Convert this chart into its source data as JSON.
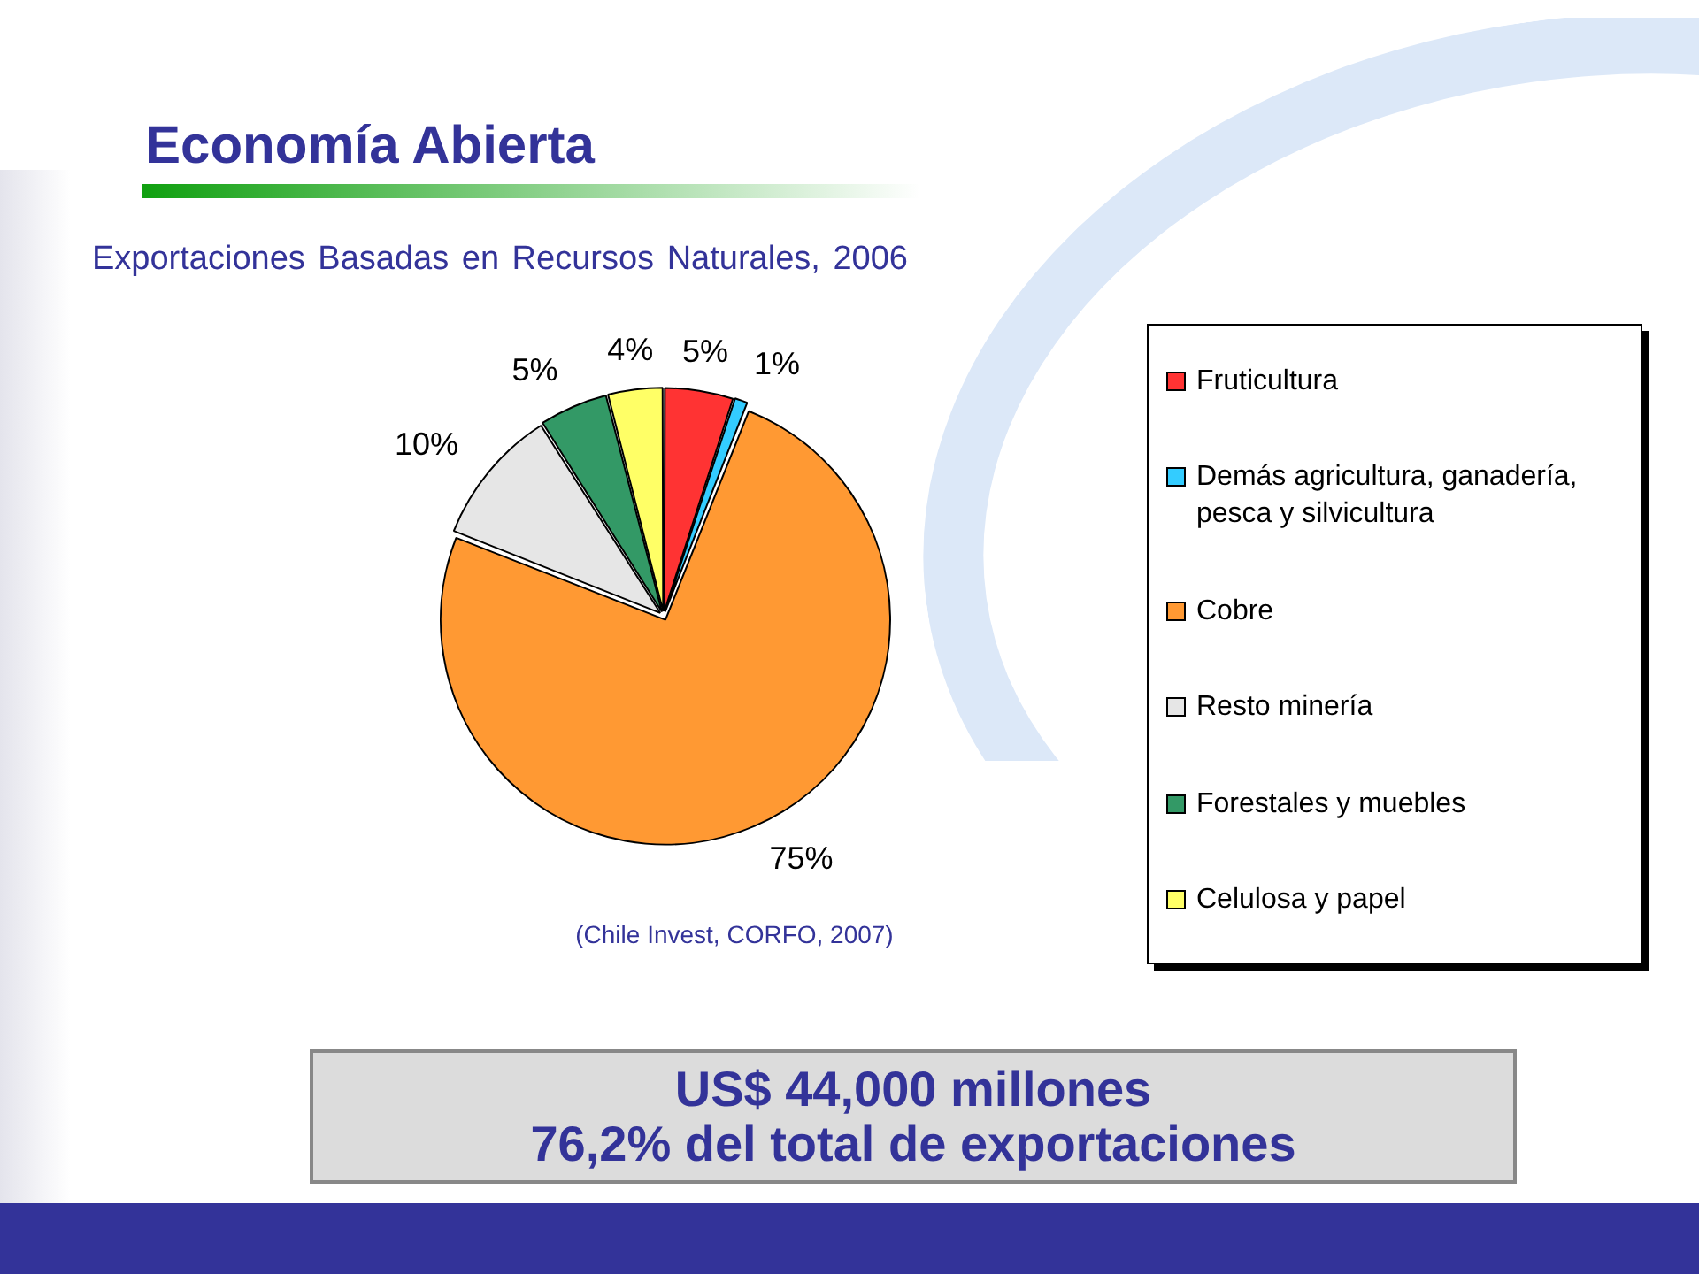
{
  "chart_data": {
    "type": "pie",
    "title": "Economía Abierta",
    "subtitle": "Exportaciones Basadas en Recursos Naturales, 2006",
    "categories": [
      "Fruticultura",
      "Demás agricultura, ganadería, pesca y silvicultura",
      "Cobre",
      "Resto minería",
      "Forestales y muebles",
      "Celulosa y papel"
    ],
    "values": [
      5,
      1,
      75,
      10,
      5,
      4
    ],
    "colors": [
      "#ff3333",
      "#33ccff",
      "#ff9933",
      "#e6e6e6",
      "#339966",
      "#ffff66"
    ],
    "value_labels": [
      "5%",
      "1%",
      "75%",
      "10%",
      "5%",
      "4%"
    ],
    "legend": "right",
    "annotations": [
      "(Chile Invest, CORFO, 2007)",
      "US$ 44,000 millones",
      "76,2% del total de exportaciones"
    ]
  }
}
